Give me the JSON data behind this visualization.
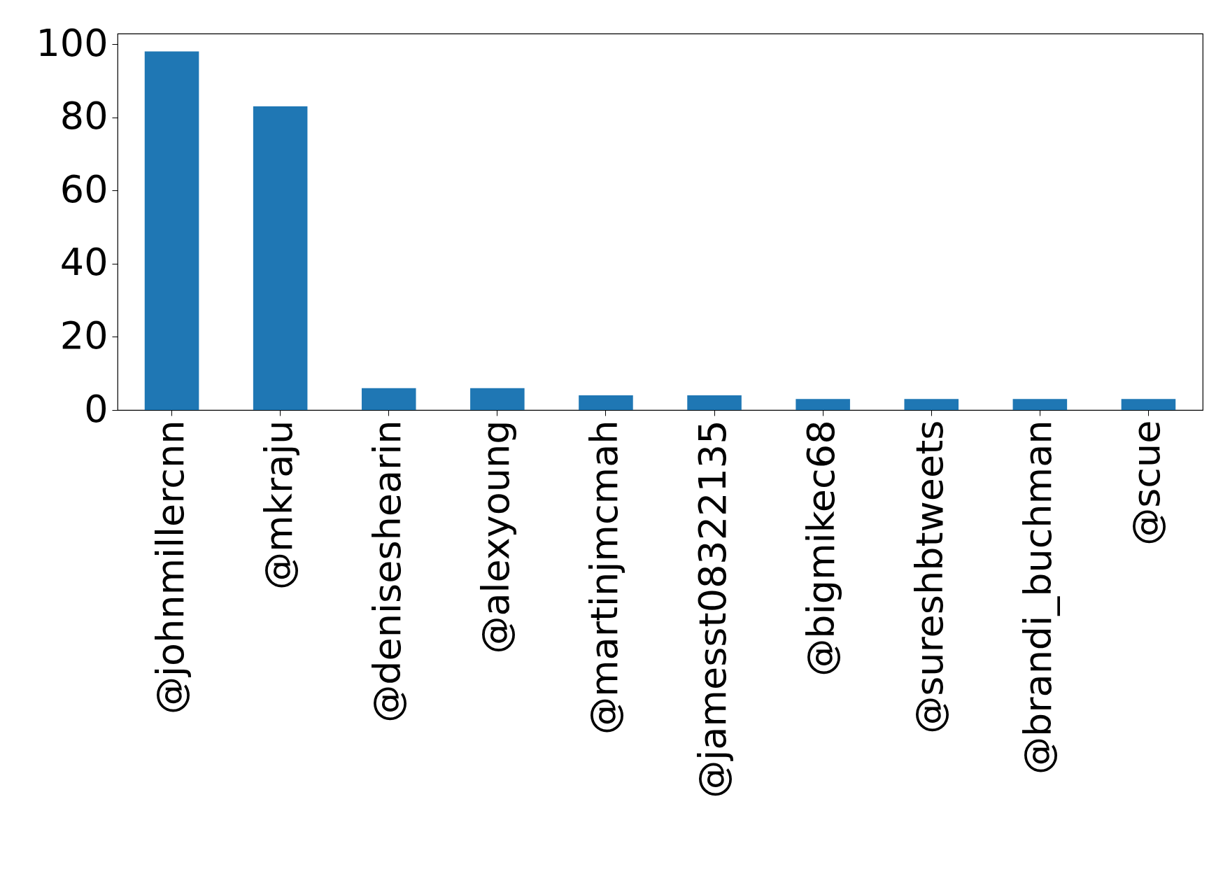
{
  "chart_data": {
    "type": "bar",
    "categories": [
      "@johnmillercnn",
      "@mkraju",
      "@deniseshearin",
      "@alexyoung",
      "@martinjmcmah",
      "@jamesst08322135",
      "@bigmikec68",
      "@sureshbtweets",
      "@brandi_buchman",
      "@scue"
    ],
    "values": [
      98,
      83,
      6,
      6,
      4,
      4,
      3,
      3,
      3,
      3
    ],
    "color": "#1f77b4",
    "ylim": [
      0,
      102.9
    ],
    "yticks": [
      0,
      20,
      40,
      60,
      80,
      100
    ],
    "grid": false
  }
}
